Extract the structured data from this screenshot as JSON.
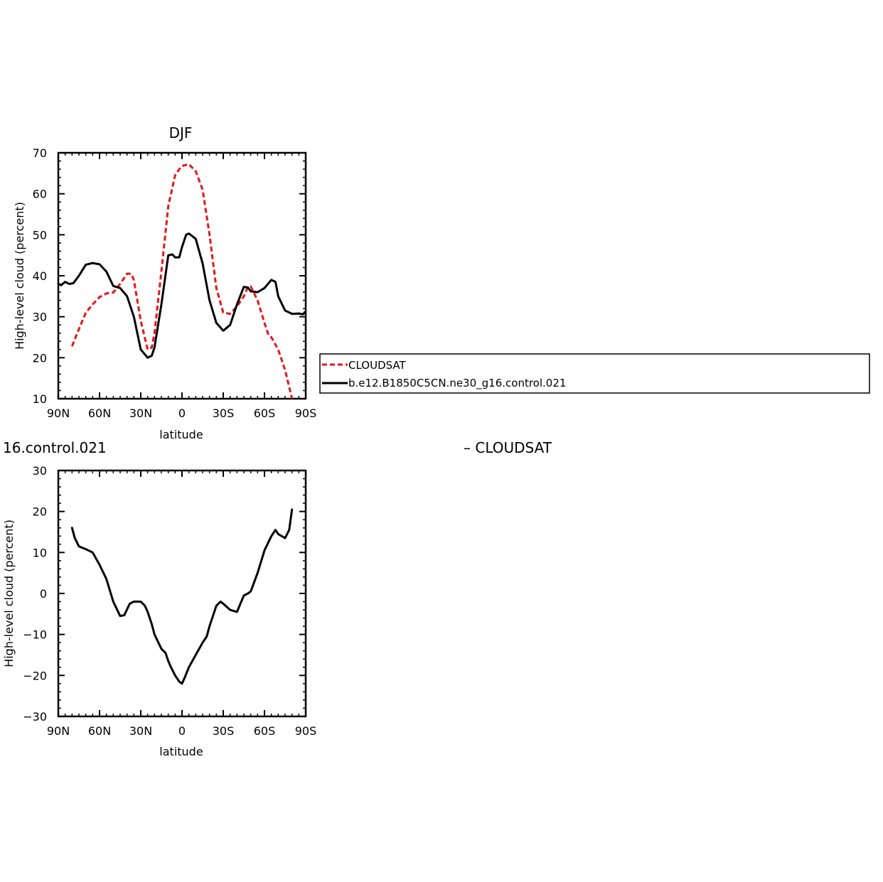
{
  "chart_data": [
    {
      "type": "line",
      "title": "DJF",
      "xlabel": "latitude",
      "ylabel": "High-level cloud (percent)",
      "xlim": [
        90,
        -90
      ],
      "ylim": [
        10,
        70
      ],
      "xticks": [
        90,
        60,
        30,
        0,
        -30,
        -60,
        -90
      ],
      "xtick_labels": [
        "90N",
        "60N",
        "30N",
        "0",
        "30S",
        "60S",
        "90S"
      ],
      "yticks": [
        10,
        20,
        30,
        40,
        50,
        60,
        70
      ],
      "ytick_labels": [
        "10",
        "20",
        "30",
        "40",
        "50",
        "60",
        "70"
      ],
      "grid": false,
      "legend": "right",
      "series": [
        {
          "name": "CLOUDSAT",
          "color": "#e8141b",
          "dash": "dashed",
          "x": [
            80,
            75,
            70,
            65,
            60,
            55,
            50,
            45,
            40,
            37,
            35,
            30,
            25,
            22,
            20,
            15,
            10,
            5,
            2,
            0,
            -5,
            -10,
            -15,
            -20,
            -25,
            -30,
            -35,
            -40,
            -45,
            -48,
            -50,
            -55,
            -60,
            -63,
            -65,
            -70,
            -75,
            -80
          ],
          "y": [
            22.8,
            27.0,
            31.0,
            33.0,
            34.8,
            35.7,
            35.9,
            38.0,
            40.5,
            40.5,
            39.0,
            29.0,
            22.0,
            22.5,
            26.0,
            41.0,
            57.0,
            64.5,
            66.0,
            66.8,
            67.2,
            65.5,
            61.0,
            50.0,
            37.0,
            31.0,
            30.7,
            32.5,
            35.0,
            37.3,
            37.4,
            34.0,
            28.5,
            25.5,
            25.0,
            22.0,
            17.0,
            10.0
          ]
        },
        {
          "name": "b.e12.B1850C5CN.ne30_g16.control.021",
          "color": "#000000",
          "dash": "solid",
          "x": [
            90,
            88,
            85,
            82,
            79,
            75,
            70,
            65,
            60,
            55,
            50,
            45,
            40,
            35,
            30,
            25,
            22,
            20,
            15,
            10,
            7,
            5,
            2,
            0,
            -3,
            -5,
            -10,
            -15,
            -20,
            -25,
            -30,
            -35,
            -40,
            -45,
            -48,
            -50,
            -55,
            -60,
            -65,
            -68,
            -70,
            -75,
            -77,
            -80,
            -85,
            -88,
            -90
          ],
          "y": [
            38.0,
            37.7,
            38.5,
            38.0,
            38.2,
            40.0,
            42.7,
            43.1,
            42.8,
            41.0,
            37.5,
            37.0,
            35.0,
            30.0,
            22.0,
            20.0,
            20.5,
            22.5,
            33.0,
            45.0,
            45.2,
            44.5,
            44.5,
            47.0,
            50.0,
            50.3,
            49.0,
            43.0,
            34.0,
            28.5,
            26.6,
            28.0,
            33.0,
            37.3,
            37.1,
            36.2,
            36.0,
            37.0,
            39.0,
            38.5,
            35.0,
            31.5,
            31.2,
            30.7,
            30.8,
            30.6,
            31.3
          ]
        }
      ]
    },
    {
      "type": "line",
      "title": "16.control.021",
      "title_right": "– CLOUDSAT",
      "xlabel": "latitude",
      "ylabel": "High-level cloud (percent)",
      "xlim": [
        90,
        -90
      ],
      "ylim": [
        -30,
        30
      ],
      "xticks": [
        90,
        60,
        30,
        0,
        -30,
        -60,
        -90
      ],
      "xtick_labels": [
        "90N",
        "60N",
        "30N",
        "0",
        "30S",
        "60S",
        "90S"
      ],
      "yticks": [
        -30,
        -20,
        -10,
        0,
        10,
        20,
        30
      ],
      "ytick_labels": [
        "−30",
        "−20",
        "−10",
        "0",
        "10",
        "20",
        "30"
      ],
      "grid": false,
      "series": [
        {
          "color": "#000000",
          "dash": "solid",
          "x": [
            80,
            78,
            75,
            70,
            65,
            60,
            55,
            50,
            45,
            42,
            38,
            35,
            30,
            27,
            25,
            22,
            20,
            15,
            12,
            10,
            8,
            5,
            2,
            0,
            -2,
            -5,
            -10,
            -15,
            -18,
            -20,
            -25,
            -28,
            -30,
            -35,
            -40,
            -45,
            -48,
            -50,
            -55,
            -60,
            -65,
            -68,
            -70,
            -75,
            -78,
            -80
          ],
          "y": [
            16.0,
            13.5,
            11.5,
            10.8,
            10.0,
            7.0,
            3.5,
            -2.0,
            -5.5,
            -5.3,
            -2.5,
            -2.0,
            -2.0,
            -3.0,
            -4.5,
            -7.5,
            -10.0,
            -13.5,
            -14.5,
            -16.5,
            -18.0,
            -20.0,
            -21.5,
            -22.0,
            -20.5,
            -18.0,
            -15.0,
            -12.0,
            -10.5,
            -8.0,
            -3.0,
            -2.0,
            -2.5,
            -4.0,
            -4.5,
            -0.5,
            0.0,
            0.5,
            5.0,
            10.5,
            14.0,
            15.5,
            14.5,
            13.5,
            15.5,
            20.5
          ]
        }
      ]
    }
  ]
}
